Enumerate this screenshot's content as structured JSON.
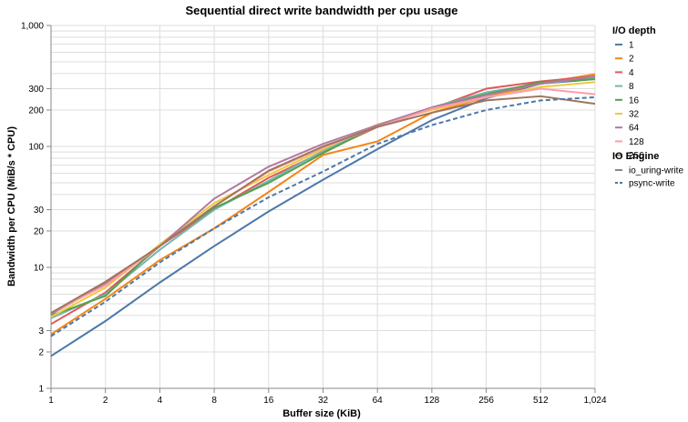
{
  "chart_data": {
    "type": "line",
    "title": "Sequential direct write bandwidth per cpu usage",
    "xlabel": "Buffer size (KiB)",
    "ylabel": "Bandwidth per CPU (MiB/s * CPU)",
    "x_scale": "log2",
    "y_scale": "log10",
    "xlim": [
      1,
      1024
    ],
    "ylim": [
      1,
      1000
    ],
    "grid": true,
    "x": [
      1,
      2,
      4,
      8,
      16,
      32,
      64,
      128,
      256,
      512,
      1024
    ],
    "x_tick_labels": [
      "1",
      "2",
      "4",
      "8",
      "16",
      "32",
      "64",
      "128",
      "256",
      "512",
      "1,024"
    ],
    "y_ticks": [
      1,
      2,
      3,
      10,
      20,
      30,
      100,
      200,
      300,
      1000
    ],
    "y_tick_labels": [
      "1",
      "2",
      "3",
      "10",
      "20",
      "30",
      "100",
      "200",
      "300",
      "1,000"
    ],
    "legend_placement": "right",
    "legend": {
      "color_title": "I/O depth",
      "style_title": "IO Engine",
      "styles": [
        {
          "name": "io_uring-write",
          "dash": "solid"
        },
        {
          "name": "psync-write",
          "dash": "dashed"
        }
      ]
    },
    "series": [
      {
        "name": "1",
        "engine": "io_uring-write",
        "color": "#4c78a8",
        "values": [
          1.85,
          3.6,
          7.5,
          15,
          29,
          53,
          95,
          165,
          250,
          330,
          360
        ]
      },
      {
        "name": "2",
        "engine": "io_uring-write",
        "color": "#f58518",
        "values": [
          2.8,
          5.5,
          11.5,
          21,
          42,
          85,
          110,
          190,
          255,
          335,
          395
        ]
      },
      {
        "name": "4",
        "engine": "io_uring-write",
        "color": "#e45756",
        "values": [
          3.4,
          6.2,
          15,
          30,
          55,
          90,
          145,
          205,
          300,
          345,
          380
        ]
      },
      {
        "name": "8",
        "engine": "io_uring-write",
        "color": "#72b7b2",
        "values": [
          3.8,
          6.0,
          14,
          30,
          52,
          92,
          150,
          210,
          280,
          330,
          370
        ]
      },
      {
        "name": "16",
        "engine": "io_uring-write",
        "color": "#54a24b",
        "values": [
          4.0,
          5.8,
          15.5,
          31,
          50,
          88,
          148,
          210,
          270,
          340,
          360
        ]
      },
      {
        "name": "32",
        "engine": "io_uring-write",
        "color": "#eeca3b",
        "values": [
          3.9,
          6.8,
          15.5,
          34,
          58,
          95,
          152,
          200,
          255,
          310,
          340
        ]
      },
      {
        "name": "64",
        "engine": "io_uring-write",
        "color": "#b279a2",
        "values": [
          4.1,
          7.3,
          15,
          37,
          68,
          105,
          150,
          210,
          265,
          330,
          380
        ]
      },
      {
        "name": "128",
        "engine": "io_uring-write",
        "color": "#ff9da6",
        "values": [
          4.2,
          7.1,
          15,
          32,
          62,
          98,
          145,
          205,
          255,
          300,
          270
        ]
      },
      {
        "name": "256",
        "engine": "io_uring-write",
        "color": "#9d755d",
        "values": [
          4.2,
          7.6,
          15,
          32,
          63,
          100,
          145,
          190,
          240,
          260,
          225
        ]
      },
      {
        "name": "",
        "engine": "psync-write",
        "color": "#4c78a8",
        "values": [
          2.7,
          5.2,
          11,
          21,
          38,
          62,
          105,
          150,
          200,
          240,
          255
        ]
      }
    ]
  }
}
